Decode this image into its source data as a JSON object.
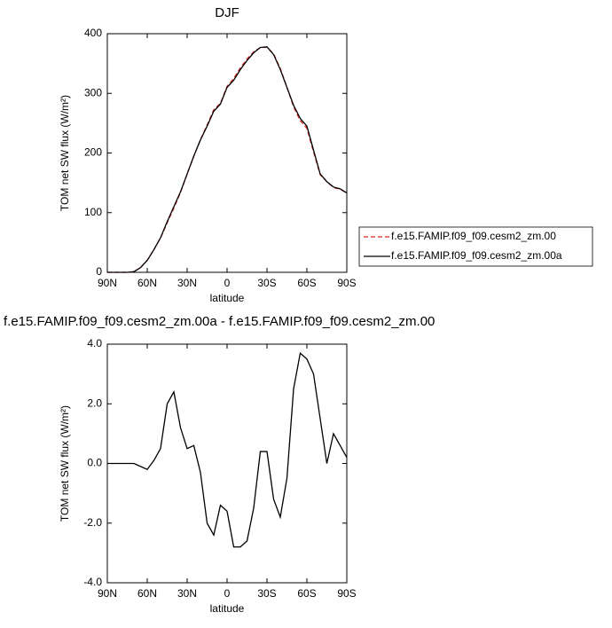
{
  "chart_data": [
    {
      "type": "line",
      "title": "DJF",
      "xlabel": "latitude",
      "ylabel": "TOM net SW flux (W/m²)",
      "x": [
        90,
        85,
        80,
        75,
        70,
        65,
        60,
        55,
        50,
        45,
        40,
        35,
        30,
        25,
        20,
        15,
        10,
        5,
        0,
        -5,
        -10,
        -15,
        -20,
        -25,
        -30,
        -35,
        -40,
        -45,
        -50,
        -55,
        -60,
        -65,
        -70,
        -75,
        -80,
        -85,
        -90
      ],
      "xlim": [
        90,
        -90
      ],
      "xticks": [
        {
          "value": 90,
          "label": "90N"
        },
        {
          "value": 60,
          "label": "60N"
        },
        {
          "value": 30,
          "label": "30N"
        },
        0,
        {
          "value": -30,
          "label": "30S"
        },
        {
          "value": -60,
          "label": "60S"
        },
        {
          "value": -90,
          "label": "90S"
        }
      ],
      "ylim": [
        0,
        400
      ],
      "yticks": [
        0,
        100,
        200,
        300,
        400
      ],
      "legend": "right",
      "series": [
        {
          "name": "f.e15.FAMIP.f09_f09.cesm2_zm.00",
          "color": "#e0201b",
          "line_style": "dashed",
          "values": [
            0,
            0,
            0,
            0,
            1,
            8.1,
            20.2,
            37.9,
            57.5,
            83,
            107.6,
            133.8,
            164.5,
            194.4,
            222.3,
            247,
            272.4,
            283.4,
            311.6,
            324.8,
            342.8,
            357.6,
            369.5,
            376.6,
            377.6,
            366.2,
            341.8,
            310.5,
            277.5,
            254.3,
            241.5,
            202,
            163.5,
            152,
            142,
            139.4,
            132.8
          ]
        },
        {
          "name": "f.e15.FAMIP.f09_f09.cesm2_zm.00a",
          "color": "#000000",
          "line_style": "solid",
          "values": [
            0,
            0,
            0,
            0,
            1,
            8,
            20,
            38,
            58,
            85,
            110,
            135,
            165,
            195,
            222,
            245,
            270,
            282,
            310,
            322,
            340,
            355,
            368,
            377,
            378,
            365,
            340,
            310,
            280,
            258,
            245,
            205,
            165,
            152,
            143,
            140,
            133
          ]
        }
      ]
    },
    {
      "type": "line",
      "title": "f.e15.FAMIP.f09_f09.cesm2_zm.00a - f.e15.FAMIP.f09_f09.cesm2_zm.00",
      "xlabel": "latitude",
      "ylabel": "TOM net SW flux (W/m²)",
      "x": [
        90,
        85,
        80,
        75,
        70,
        65,
        60,
        55,
        50,
        45,
        40,
        35,
        30,
        25,
        20,
        15,
        10,
        5,
        0,
        -5,
        -10,
        -15,
        -20,
        -25,
        -30,
        -35,
        -40,
        -45,
        -50,
        -55,
        -60,
        -65,
        -70,
        -75,
        -80,
        -85,
        -90
      ],
      "xlim": [
        90,
        -90
      ],
      "xticks": [
        {
          "value": 90,
          "label": "90N"
        },
        {
          "value": 60,
          "label": "60N"
        },
        {
          "value": 30,
          "label": "30N"
        },
        0,
        {
          "value": -30,
          "label": "30S"
        },
        {
          "value": -60,
          "label": "60S"
        },
        {
          "value": -90,
          "label": "90S"
        }
      ],
      "ylim": [
        -4,
        4
      ],
      "yticks": [
        {
          "value": -4,
          "label": "-4.0"
        },
        {
          "value": -2,
          "label": "-2.0"
        },
        {
          "value": 0,
          "label": "0.0"
        },
        {
          "value": 2,
          "label": "2.0"
        },
        {
          "value": 4,
          "label": "4.0"
        }
      ],
      "series": [
        {
          "color": "#000000",
          "line_style": "solid",
          "values": [
            0,
            0,
            0,
            0,
            0,
            -0.1,
            -0.2,
            0.1,
            0.5,
            2.0,
            2.4,
            1.2,
            0.5,
            0.6,
            -0.3,
            -2.0,
            -2.4,
            -1.4,
            -1.6,
            -2.8,
            -2.8,
            -2.6,
            -1.5,
            0.4,
            0.4,
            -1.2,
            -1.8,
            -0.5,
            2.5,
            3.7,
            3.5,
            3.0,
            1.5,
            0.0,
            1.0,
            0.6,
            0.2
          ]
        }
      ]
    }
  ]
}
